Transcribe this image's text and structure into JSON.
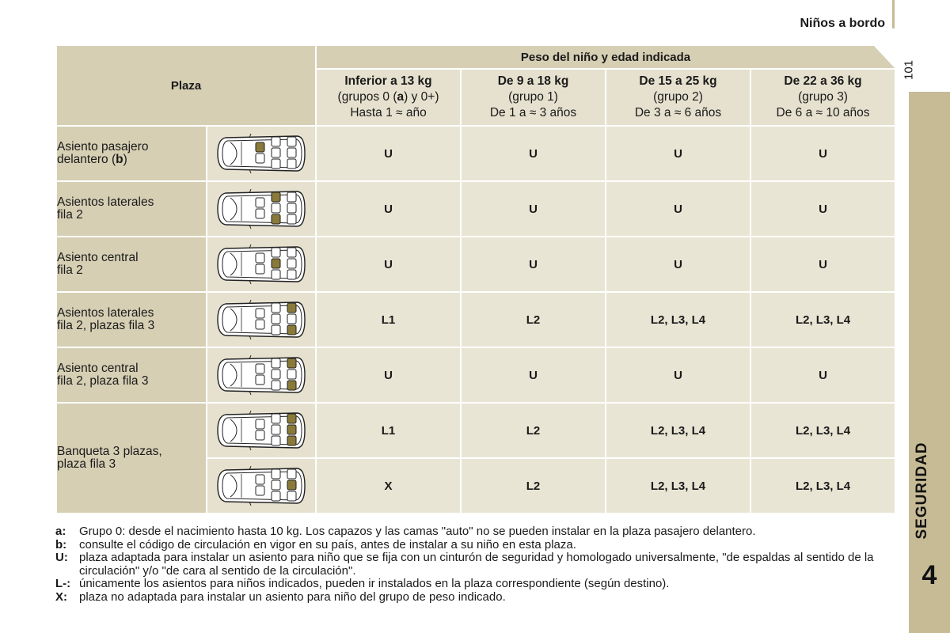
{
  "header": {
    "title": "Niños a bordo",
    "page_number": "101"
  },
  "side_tab": {
    "label": "SEGURIDAD",
    "chapter": "4",
    "color": "#c7bb96"
  },
  "table": {
    "plaza_header": "Plaza",
    "peso_header": "Peso del niño y edad indicada",
    "columns": [
      {
        "title": "Inferior a 13 kg",
        "group_pre": "(grupos 0 (",
        "group_bold": "a",
        "group_post": ") y 0+)",
        "age": "Hasta 1 ≈ año"
      },
      {
        "title": "De 9 a 18 kg",
        "group_pre": "(grupo 1)",
        "group_bold": "",
        "group_post": "",
        "age": "De 1 a ≈ 3 años"
      },
      {
        "title": "De 15 a 25 kg",
        "group_pre": "(grupo 2)",
        "group_bold": "",
        "group_post": "",
        "age": "De 3 a ≈ 6 años"
      },
      {
        "title": "De 22 a 36 kg",
        "group_pre": "(grupo 3)",
        "group_bold": "",
        "group_post": "",
        "age": "De 6 a ≈ 10 años"
      }
    ],
    "rows": [
      {
        "label_line1": "Asiento pasajero",
        "label_line2_pre": "delantero (",
        "label_line2_bold": "b",
        "label_line2_post": ")",
        "values": [
          "U",
          "U",
          "U",
          "U"
        ],
        "highlight_icon": "front-passenger"
      },
      {
        "label_line1": "Asientos laterales",
        "label_line2_pre": "fila 2",
        "label_line2_bold": "",
        "label_line2_post": "",
        "values": [
          "U",
          "U",
          "U",
          "U"
        ],
        "highlight_icon": "row2-sides"
      },
      {
        "label_line1": "Asiento central",
        "label_line2_pre": "fila 2",
        "label_line2_bold": "",
        "label_line2_post": "",
        "values": [
          "U",
          "U",
          "U",
          "U"
        ],
        "highlight_icon": "row2-center"
      },
      {
        "label_line1": "Asientos laterales",
        "label_line2_pre": "fila 2, plazas fila 3",
        "label_line2_bold": "",
        "label_line2_post": "",
        "values": [
          "L1",
          "L2",
          "L2, L3, L4",
          "L2, L3, L4"
        ],
        "highlight_icon": "row3-sides"
      },
      {
        "label_line1": "Asiento central",
        "label_line2_pre": "fila 2, plaza fila 3",
        "label_line2_bold": "",
        "label_line2_post": "",
        "values": [
          "U",
          "U",
          "U",
          "U"
        ],
        "highlight_icon": "row3-sides-b"
      },
      {
        "label_line1": "Banqueta 3 plazas,",
        "label_line2_pre": "plaza fila 3",
        "label_line2_bold": "",
        "label_line2_post": "",
        "values": [
          "L1",
          "L2",
          "L2, L3, L4",
          "L2, L3, L4"
        ],
        "highlight_icon": "row3-all"
      },
      {
        "values": [
          "X",
          "L2",
          "L2, L3, L4",
          "L2, L3, L4"
        ],
        "highlight_icon": "row3-center"
      }
    ]
  },
  "notes": [
    {
      "key": "a:",
      "text": "Grupo 0: desde el nacimiento hasta 10 kg. Los capazos y las camas \"auto\" no se pueden instalar en la plaza pasajero delantero."
    },
    {
      "key": "b:",
      "text": "consulte el código de circulación en vigor en su país, antes de instalar a su niño en esta plaza."
    },
    {
      "key": "U:",
      "text": "plaza adaptada para instalar un asiento para niño que se fija con un cinturón de seguridad y homologado universalmente, \"de espaldas al sentido de la circulación\" y/o \"de cara al sentido de la circulación\"."
    },
    {
      "key": "L-:",
      "text": "únicamente los asientos para niños indicados, pueden ir instalados en la plaza correspondiente (según destino)."
    },
    {
      "key": "X:",
      "text": "plaza no adaptada para instalar un asiento para niño del grupo de peso indicado."
    }
  ],
  "colors": {
    "highlight_seat": "#8a7a3a",
    "label_bg": "#d6cfb4",
    "cell_bg": "#e9e5d4"
  }
}
